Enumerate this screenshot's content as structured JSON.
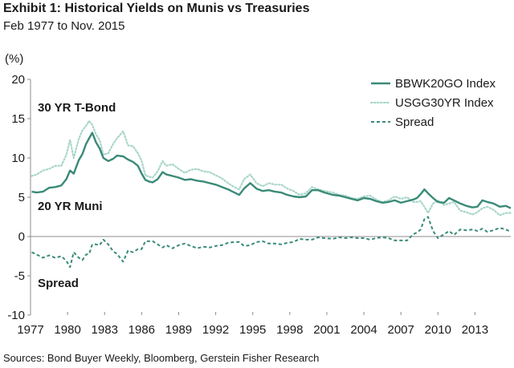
{
  "title": "Exhibit 1: Historical Yields on Munis vs Treasuries",
  "subtitle": "Feb 1977 to Nov. 2015",
  "source": "Sources: Bond Buyer Weekly, Bloomberg, Gerstein Fisher Research",
  "colors": {
    "muni": "#3a8a78",
    "treasury": "#a8d6c8",
    "spread": "#3a8a78",
    "axis": "#8c8c8c"
  },
  "chart_data": {
    "type": "line",
    "ylabel": "(%)",
    "ylim": [
      -10,
      20
    ],
    "xlim": [
      1977,
      2015.9
    ],
    "yticks": [
      20,
      15,
      10,
      5,
      0,
      -5,
      -10
    ],
    "xticks": [
      "1977",
      "1980",
      "1983",
      "1986",
      "1989",
      "1992",
      "1995",
      "1998",
      "2001",
      "2004",
      "2007",
      "2010",
      "2013"
    ],
    "legend_position": "top-right",
    "annotations": [
      "30 YR T-Bond",
      "20 YR Muni",
      "Spread"
    ],
    "series": [
      {
        "name": "BBWK20GO Index",
        "style": "solid",
        "x": [
          1977.1,
          1977.5,
          1978.0,
          1978.5,
          1979.0,
          1979.5,
          1979.9,
          1980.2,
          1980.5,
          1980.9,
          1981.2,
          1981.5,
          1981.75,
          1982.0,
          1982.3,
          1982.6,
          1982.9,
          1983.3,
          1983.7,
          1984.0,
          1984.5,
          1984.9,
          1985.3,
          1985.7,
          1986.0,
          1986.3,
          1986.6,
          1986.9,
          1987.3,
          1987.7,
          1988.0,
          1988.5,
          1989.0,
          1989.5,
          1990.0,
          1990.5,
          1991.0,
          1991.5,
          1992.0,
          1992.5,
          1993.0,
          1993.5,
          1993.9,
          1994.3,
          1994.8,
          1995.3,
          1995.8,
          1996.3,
          1996.8,
          1997.3,
          1997.8,
          1998.3,
          1998.8,
          1999.3,
          1999.8,
          2000.3,
          2000.8,
          2001.5,
          2002.0,
          2002.5,
          2003.0,
          2003.5,
          2004.0,
          2004.5,
          2005.0,
          2005.5,
          2006.0,
          2006.5,
          2007.0,
          2007.5,
          2008.0,
          2008.3,
          2008.6,
          2008.9,
          2009.2,
          2009.6,
          2010.0,
          2010.5,
          2010.9,
          2011.3,
          2011.8,
          2012.3,
          2012.8,
          2013.2,
          2013.6,
          2014.0,
          2014.5,
          2015.0,
          2015.5,
          2015.9
        ],
        "values": [
          5.7,
          5.6,
          5.7,
          6.2,
          6.3,
          6.5,
          7.3,
          8.4,
          8.0,
          9.7,
          10.5,
          11.8,
          12.5,
          13.2,
          12.0,
          11.2,
          10.0,
          9.6,
          9.9,
          10.3,
          10.2,
          9.8,
          9.5,
          9.0,
          8.0,
          7.2,
          7.0,
          6.9,
          7.3,
          8.2,
          7.9,
          7.7,
          7.5,
          7.2,
          7.3,
          7.1,
          7.0,
          6.8,
          6.6,
          6.3,
          6.0,
          5.6,
          5.3,
          6.1,
          6.8,
          6.1,
          5.8,
          5.9,
          5.7,
          5.6,
          5.3,
          5.1,
          5.0,
          5.1,
          5.9,
          5.9,
          5.6,
          5.3,
          5.2,
          5.0,
          4.8,
          4.6,
          4.9,
          4.8,
          4.5,
          4.3,
          4.4,
          4.6,
          4.3,
          4.5,
          4.7,
          4.9,
          5.4,
          6.0,
          5.5,
          4.9,
          4.4,
          4.3,
          4.9,
          4.6,
          4.2,
          3.9,
          3.7,
          3.8,
          4.6,
          4.4,
          4.2,
          3.8,
          3.9,
          3.6
        ]
      },
      {
        "name": "USGG30YR Index",
        "style": "dotted",
        "x": [
          1977.1,
          1977.5,
          1978.0,
          1978.5,
          1979.0,
          1979.5,
          1979.9,
          1980.2,
          1980.5,
          1980.9,
          1981.2,
          1981.5,
          1981.75,
          1982.0,
          1982.3,
          1982.6,
          1982.9,
          1983.3,
          1983.7,
          1984.0,
          1984.5,
          1984.9,
          1985.3,
          1985.7,
          1986.0,
          1986.3,
          1986.6,
          1986.9,
          1987.3,
          1987.7,
          1988.0,
          1988.5,
          1989.0,
          1989.5,
          1990.0,
          1990.5,
          1991.0,
          1991.5,
          1992.0,
          1992.5,
          1993.0,
          1993.5,
          1993.9,
          1994.3,
          1994.8,
          1995.3,
          1995.8,
          1996.3,
          1996.8,
          1997.3,
          1997.8,
          1998.3,
          1998.8,
          1999.3,
          1999.8,
          2000.3,
          2000.8,
          2001.5,
          2002.0,
          2002.5,
          2003.0,
          2003.5,
          2004.0,
          2004.5,
          2005.0,
          2005.5,
          2006.0,
          2006.5,
          2007.0,
          2007.5,
          2008.0,
          2008.3,
          2008.6,
          2008.9,
          2009.2,
          2009.6,
          2010.0,
          2010.5,
          2010.9,
          2011.3,
          2011.8,
          2012.3,
          2012.8,
          2013.2,
          2013.6,
          2014.0,
          2014.5,
          2015.0,
          2015.5,
          2015.9
        ],
        "values": [
          7.7,
          7.9,
          8.4,
          8.6,
          9.0,
          9.0,
          10.4,
          12.3,
          10.0,
          12.4,
          13.5,
          14.1,
          14.7,
          14.2,
          13.0,
          12.3,
          10.4,
          10.6,
          11.8,
          12.5,
          13.4,
          11.6,
          11.5,
          10.6,
          9.6,
          7.8,
          7.6,
          7.5,
          8.3,
          9.6,
          9.0,
          9.2,
          8.6,
          8.1,
          8.5,
          8.6,
          8.3,
          8.2,
          7.8,
          7.4,
          6.8,
          6.3,
          6.0,
          7.3,
          7.9,
          6.8,
          6.4,
          6.8,
          6.6,
          6.6,
          6.1,
          5.8,
          5.3,
          5.5,
          6.3,
          6.0,
          5.8,
          5.6,
          5.3,
          5.2,
          4.9,
          4.8,
          5.1,
          5.2,
          4.7,
          4.4,
          4.6,
          5.1,
          4.8,
          5.0,
          4.4,
          4.4,
          4.5,
          3.8,
          3.0,
          4.2,
          4.6,
          4.0,
          4.2,
          4.4,
          3.3,
          3.1,
          2.8,
          3.1,
          3.6,
          3.8,
          3.4,
          2.7,
          3.0,
          3.0
        ]
      },
      {
        "name": "Spread",
        "style": "dashed",
        "x": [
          1977.1,
          1977.5,
          1978.0,
          1978.5,
          1979.0,
          1979.5,
          1979.9,
          1980.2,
          1980.5,
          1980.9,
          1981.2,
          1981.5,
          1981.75,
          1982.0,
          1982.3,
          1982.6,
          1982.9,
          1983.3,
          1983.7,
          1984.0,
          1984.5,
          1984.9,
          1985.3,
          1985.7,
          1986.0,
          1986.3,
          1986.6,
          1986.9,
          1987.3,
          1987.7,
          1988.0,
          1988.5,
          1989.0,
          1989.5,
          1990.0,
          1990.5,
          1991.0,
          1991.5,
          1992.0,
          1992.5,
          1993.0,
          1993.5,
          1993.9,
          1994.3,
          1994.8,
          1995.3,
          1995.8,
          1996.3,
          1996.8,
          1997.3,
          1997.8,
          1998.3,
          1998.8,
          1999.3,
          1999.8,
          2000.3,
          2000.8,
          2001.5,
          2002.0,
          2002.5,
          2003.0,
          2003.5,
          2004.0,
          2004.5,
          2005.0,
          2005.5,
          2006.0,
          2006.5,
          2007.0,
          2007.5,
          2008.0,
          2008.3,
          2008.6,
          2008.9,
          2009.2,
          2009.6,
          2010.0,
          2010.5,
          2010.9,
          2011.3,
          2011.8,
          2012.3,
          2012.8,
          2013.2,
          2013.6,
          2014.0,
          2014.5,
          2015.0,
          2015.5,
          2015.9
        ],
        "values": [
          -2.0,
          -2.3,
          -2.7,
          -2.4,
          -2.7,
          -2.5,
          -3.1,
          -3.9,
          -2.0,
          -2.7,
          -3.0,
          -2.3,
          -2.2,
          -1.0,
          -1.0,
          -1.1,
          -0.4,
          -1.0,
          -1.9,
          -2.2,
          -3.2,
          -1.8,
          -2.0,
          -1.6,
          -1.6,
          -0.6,
          -0.6,
          -0.6,
          -1.0,
          -1.4,
          -1.1,
          -1.5,
          -1.1,
          -0.9,
          -1.2,
          -1.5,
          -1.3,
          -1.4,
          -1.2,
          -1.1,
          -0.8,
          -0.7,
          -0.7,
          -1.2,
          -1.1,
          -0.7,
          -0.6,
          -0.9,
          -0.9,
          -1.0,
          -0.8,
          -0.7,
          -0.3,
          -0.4,
          -0.4,
          -0.1,
          -0.2,
          -0.3,
          -0.1,
          -0.2,
          -0.1,
          -0.2,
          -0.2,
          -0.4,
          -0.2,
          -0.1,
          -0.2,
          -0.5,
          -0.5,
          -0.5,
          0.3,
          0.5,
          0.9,
          2.2,
          2.5,
          0.7,
          -0.2,
          0.3,
          0.7,
          0.2,
          0.9,
          0.8,
          0.9,
          0.7,
          1.0,
          0.6,
          0.8,
          1.1,
          0.9,
          0.6
        ]
      }
    ]
  }
}
